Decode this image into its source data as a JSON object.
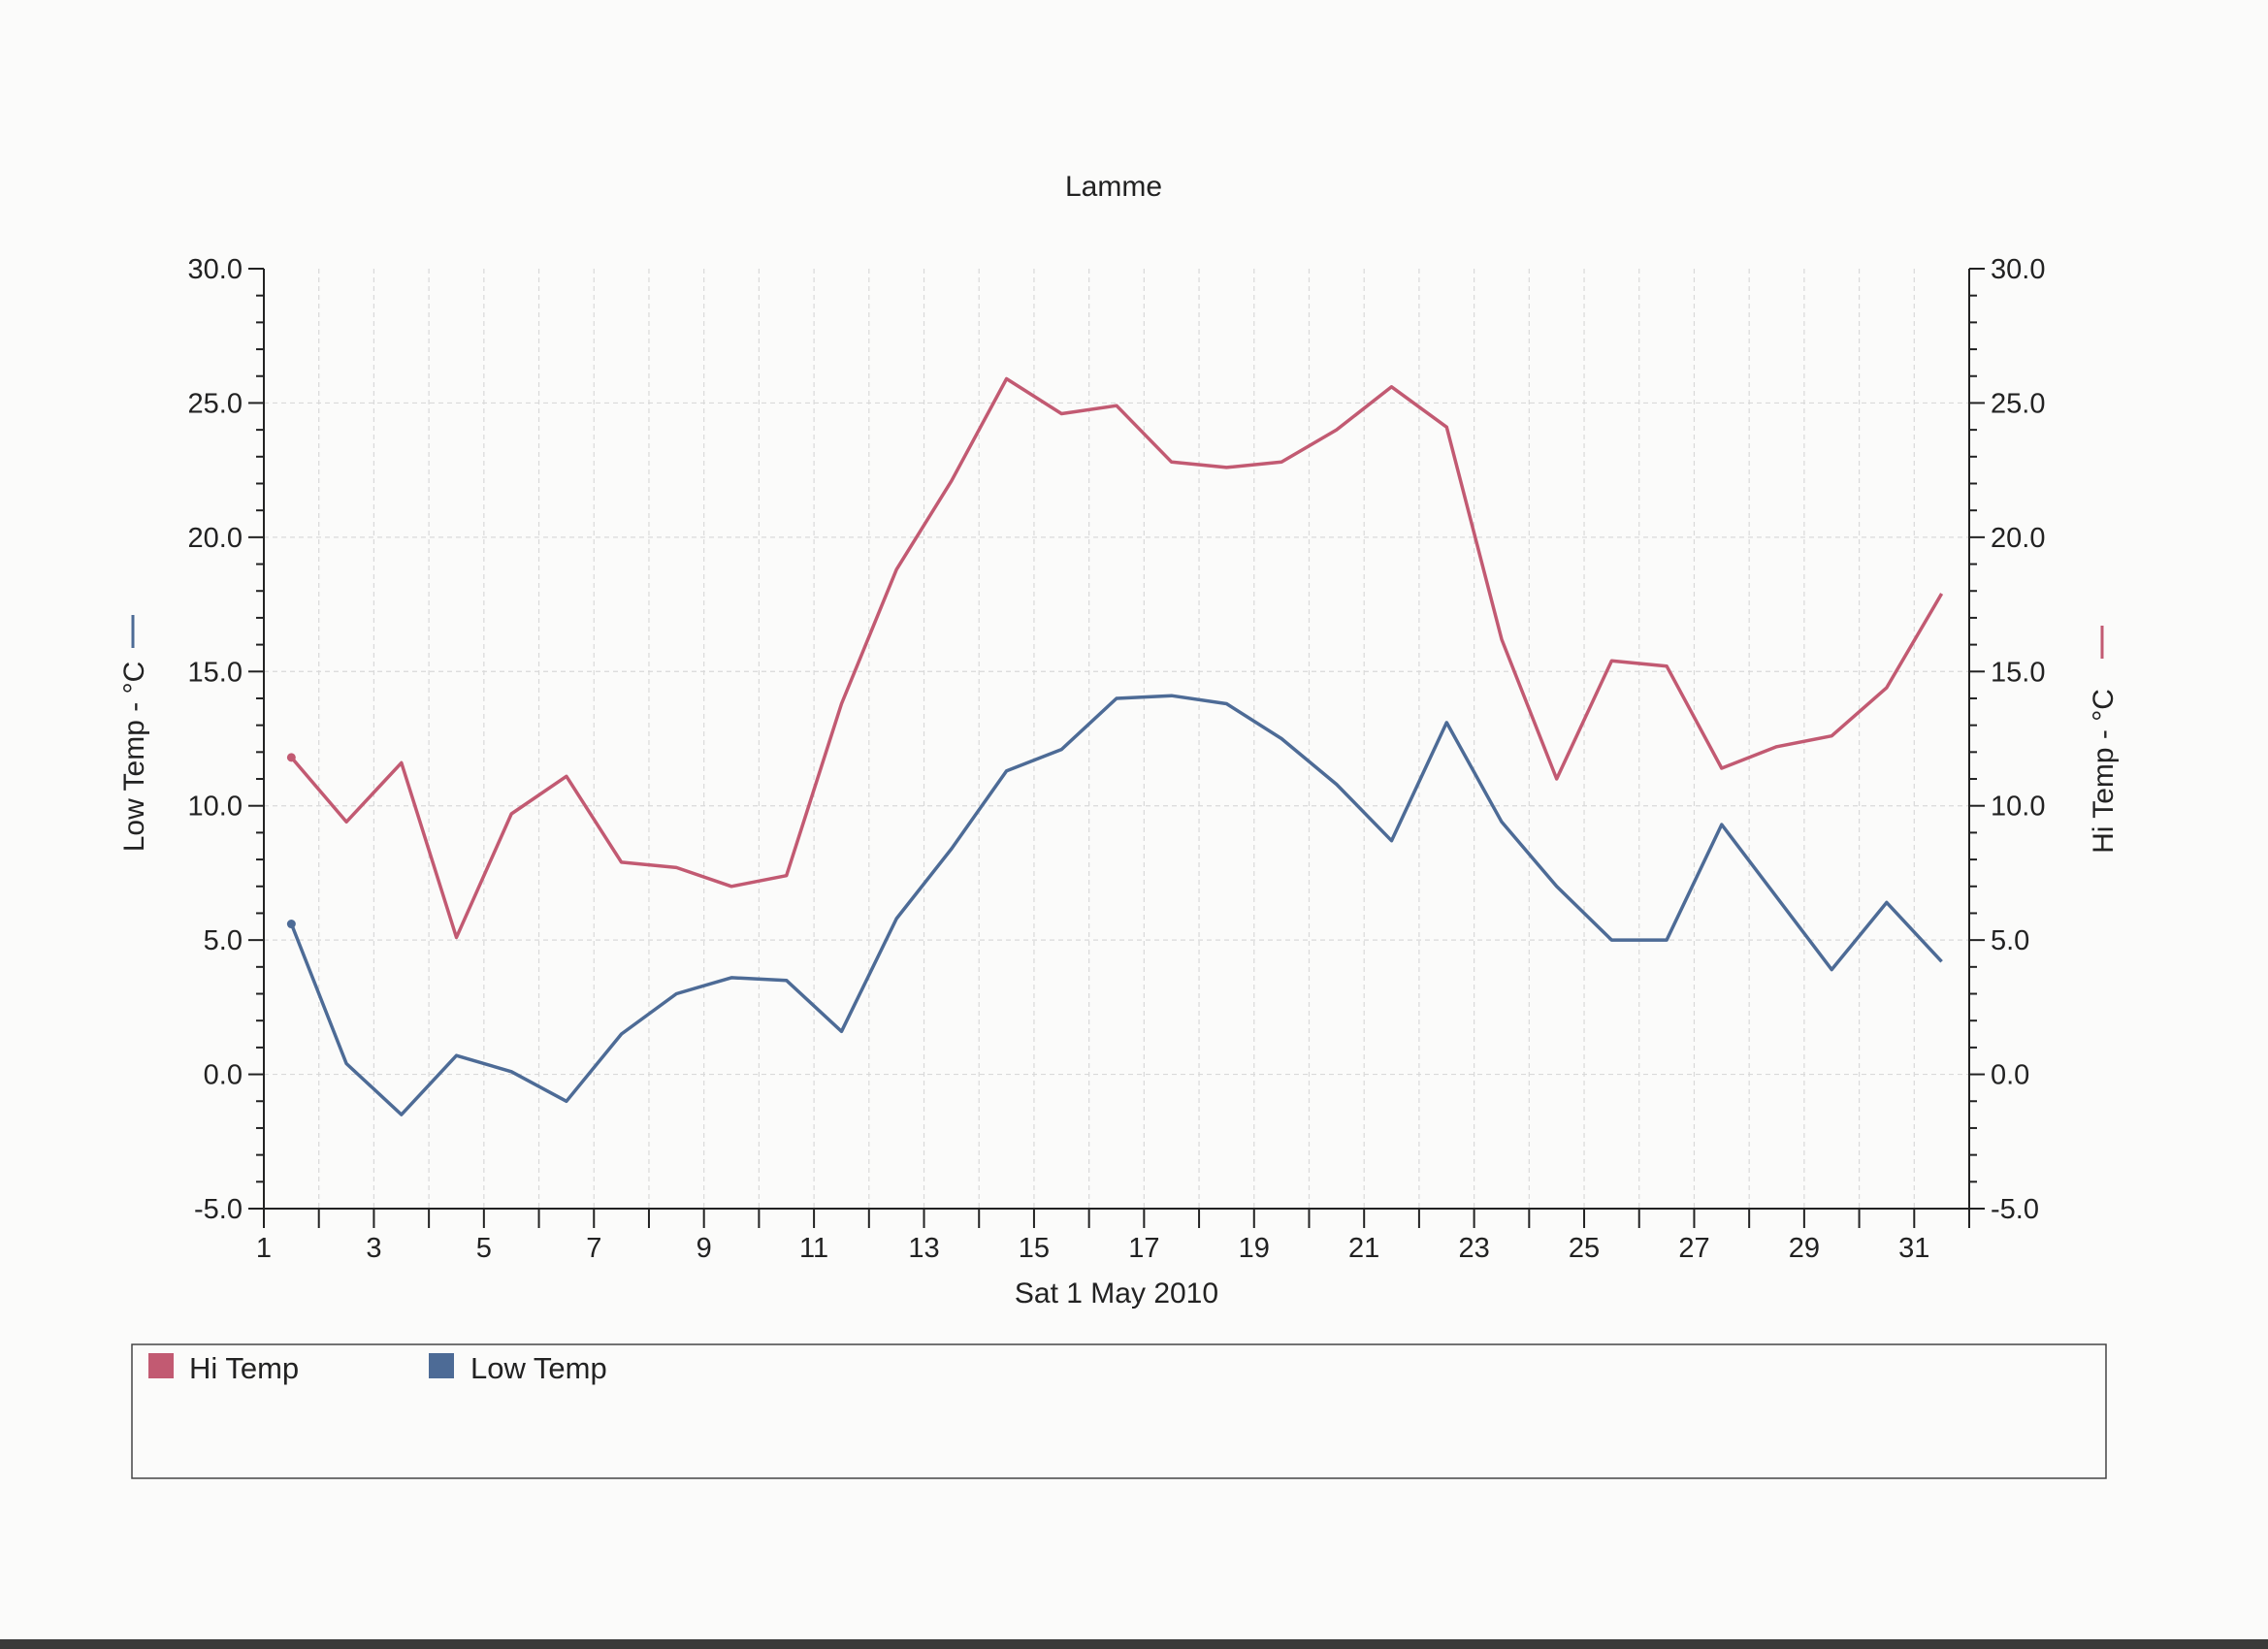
{
  "chart_data": {
    "type": "line",
    "title": "Lamme",
    "xlabel": "Sat 1 May 2010",
    "ylabel_left": "Low Temp - °C",
    "ylabel_right": "Hi Temp - °C",
    "xlim": [
      1,
      32
    ],
    "ylim": [
      -5,
      30
    ],
    "x_ticks": [
      1,
      3,
      5,
      7,
      9,
      11,
      13,
      15,
      17,
      19,
      21,
      23,
      25,
      27,
      29,
      31
    ],
    "y_ticks": [
      "-5.0",
      "0.0",
      "5.0",
      "10.0",
      "15.0",
      "20.0",
      "25.0",
      "30.0"
    ],
    "grid": true,
    "legend_position": "bottom",
    "x": [
      1.5,
      2.5,
      3.5,
      4.5,
      5.5,
      6.5,
      7.5,
      8.5,
      9.5,
      10.5,
      11.5,
      12.5,
      13.5,
      14.5,
      15.5,
      16.5,
      17.5,
      18.5,
      19.5,
      20.5,
      21.5,
      22.5,
      23.5,
      24.5,
      25.5,
      26.5,
      27.5,
      28.5,
      29.5,
      30.5,
      31.5
    ],
    "series": [
      {
        "name": "Hi Temp",
        "color": "#c25a72",
        "axis": "right",
        "values": [
          11.8,
          9.4,
          11.6,
          5.1,
          9.7,
          11.1,
          7.9,
          7.7,
          7.0,
          7.4,
          13.8,
          18.8,
          22.1,
          25.9,
          24.6,
          24.9,
          22.8,
          22.6,
          22.8,
          24.0,
          25.6,
          24.1,
          16.2,
          11.0,
          15.4,
          15.2,
          11.4,
          12.2,
          12.6,
          14.4,
          17.9
        ]
      },
      {
        "name": "Low Temp",
        "color": "#4d6b96",
        "axis": "left",
        "values": [
          5.6,
          0.4,
          -1.5,
          0.7,
          0.1,
          -1.0,
          1.5,
          3.0,
          3.6,
          3.5,
          1.6,
          5.8,
          8.4,
          11.3,
          12.1,
          14.0,
          14.1,
          13.8,
          12.5,
          10.8,
          8.7,
          13.1,
          9.4,
          7.0,
          5.0,
          5.0,
          9.3,
          6.6,
          3.9,
          6.4,
          4.2
        ]
      }
    ]
  }
}
